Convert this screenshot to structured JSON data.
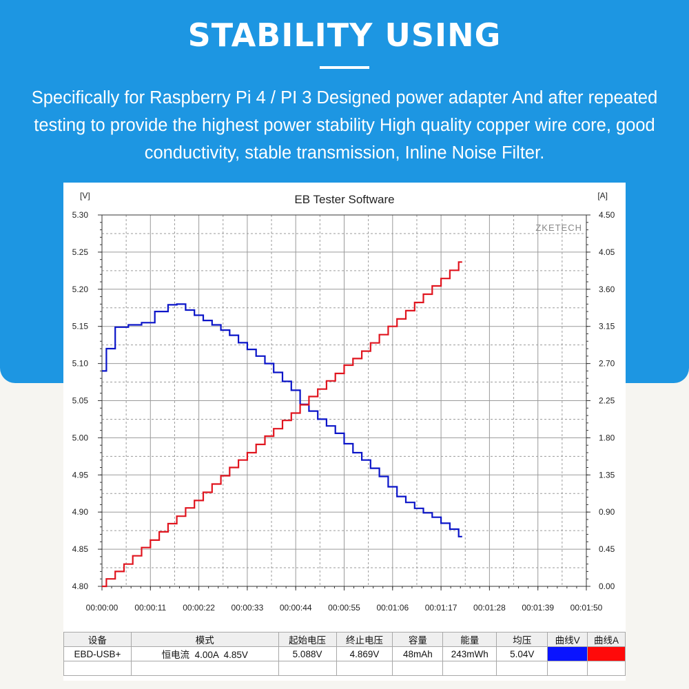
{
  "header": {
    "title": "STABILITY USING",
    "description": "Specifically for Raspberry Pi 4 / PI 3 Designed power adapter And after repeated testing to provide the highest power stability High quality copper wire core, good conductivity, stable transmission, Inline Noise Filter."
  },
  "chart_data": {
    "type": "line",
    "title": "EB Tester Software",
    "watermark": "ZKETECH",
    "ylabel_left": "[V]",
    "ylabel_right": "[A]",
    "grid": true,
    "x_ticks": [
      "00:00:00",
      "00:00:11",
      "00:00:22",
      "00:00:33",
      "00:00:44",
      "00:00:55",
      "00:01:06",
      "00:01:17",
      "00:01:28",
      "00:01:39",
      "00:01:50"
    ],
    "ylim_left": [
      4.8,
      5.3
    ],
    "ylim_right": [
      0.0,
      4.5
    ],
    "y_ticks_left": [
      "4.80",
      "4.85",
      "4.90",
      "4.95",
      "5.00",
      "5.05",
      "5.10",
      "5.15",
      "5.20",
      "5.25",
      "5.30"
    ],
    "y_ticks_right": [
      "0.00",
      "0.45",
      "0.90",
      "1.35",
      "1.80",
      "2.25",
      "2.70",
      "3.15",
      "3.60",
      "4.05",
      "4.50"
    ],
    "xlim_seconds": [
      0,
      110
    ],
    "series": [
      {
        "name": "曲线V",
        "axis": "left",
        "color": "#0a14c8",
        "x": [
          0,
          1,
          3,
          6,
          9,
          12,
          15,
          17,
          19,
          21,
          23,
          25,
          27,
          29,
          31,
          33,
          35,
          37,
          39,
          41,
          43,
          45,
          47,
          49,
          51,
          53,
          55,
          57,
          59,
          61,
          63,
          65,
          67,
          69,
          71,
          73,
          75,
          77,
          79,
          81
        ],
        "y": [
          5.09,
          5.12,
          5.149,
          5.152,
          5.155,
          5.17,
          5.179,
          5.18,
          5.172,
          5.165,
          5.158,
          5.152,
          5.145,
          5.138,
          5.128,
          5.119,
          5.11,
          5.1,
          5.088,
          5.076,
          5.064,
          5.045,
          5.036,
          5.025,
          5.016,
          5.006,
          4.992,
          4.98,
          4.97,
          4.959,
          4.948,
          4.934,
          4.921,
          4.913,
          4.905,
          4.899,
          4.893,
          4.885,
          4.877,
          4.867
        ]
      },
      {
        "name": "曲线A",
        "axis": "right",
        "color": "#e0141e",
        "x": [
          0,
          1,
          3,
          5,
          7,
          9,
          11,
          13,
          15,
          17,
          19,
          21,
          23,
          25,
          27,
          29,
          31,
          33,
          35,
          37,
          39,
          41,
          43,
          45,
          47,
          49,
          51,
          53,
          55,
          57,
          59,
          61,
          63,
          65,
          67,
          69,
          71,
          73,
          75,
          77,
          79,
          81
        ],
        "y": [
          0.0,
          0.09,
          0.18,
          0.27,
          0.37,
          0.47,
          0.56,
          0.66,
          0.76,
          0.85,
          0.95,
          1.04,
          1.14,
          1.24,
          1.34,
          1.44,
          1.53,
          1.62,
          1.72,
          1.82,
          1.91,
          2.01,
          2.1,
          2.2,
          2.3,
          2.39,
          2.49,
          2.58,
          2.68,
          2.76,
          2.85,
          2.95,
          3.05,
          3.15,
          3.24,
          3.34,
          3.44,
          3.54,
          3.64,
          3.73,
          3.83,
          3.93
        ]
      }
    ]
  },
  "table": {
    "headers": [
      "设备",
      "模式",
      "起始电压",
      "终止电压",
      "容量",
      "能量",
      "均压",
      "曲线V",
      "曲线A"
    ],
    "row": [
      "EBD-USB+",
      "恒电流  4.00A  4.85V",
      "5.088V",
      "4.869V",
      "48mAh",
      "243mWh",
      "5.04V"
    ],
    "swatch_v": "#0a14ff",
    "swatch_a": "#ff0a0a"
  }
}
